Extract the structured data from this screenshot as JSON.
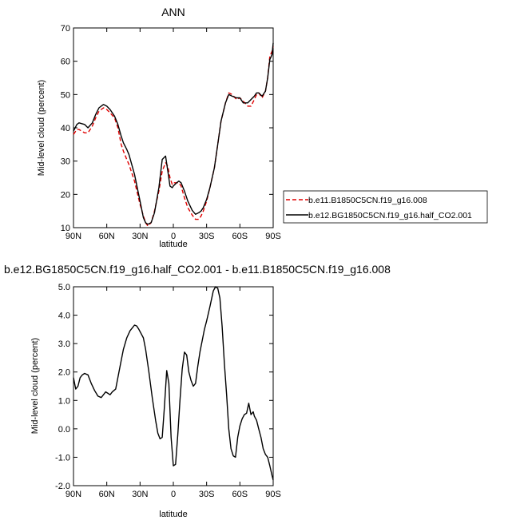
{
  "chart_data": [
    {
      "type": "line",
      "title": "ANN",
      "xlabel": "latitude",
      "ylabel": "Mid-level cloud (percent)",
      "xlim": [
        90,
        -90
      ],
      "ylim": [
        10,
        70
      ],
      "xticks": [
        90,
        60,
        30,
        0,
        -30,
        -60,
        -90
      ],
      "xtick_labels": [
        "90N",
        "60N",
        "30N",
        "0",
        "30S",
        "60S",
        "90S"
      ],
      "yticks": [
        10,
        20,
        30,
        40,
        50,
        60,
        70
      ],
      "ytick_labels": [
        "10",
        "20",
        "30",
        "40",
        "50",
        "60",
        "70"
      ],
      "legend_position": "right",
      "series": [
        {
          "name": "b.e11.B1850C5CN.f19_g16.008",
          "color": "#e00000",
          "dash": "dashed",
          "x": [
            90,
            87,
            85,
            80,
            77,
            73,
            70,
            67,
            63,
            60,
            57,
            53,
            50,
            47,
            45,
            42,
            40,
            35,
            30,
            27,
            25,
            23,
            20,
            17,
            13,
            10,
            7,
            5,
            3,
            1,
            0,
            -3,
            -5,
            -7,
            -10,
            -13,
            -17,
            -20,
            -23,
            -25,
            -27,
            -30,
            -33,
            -37,
            -40,
            -43,
            -47,
            -50,
            -53,
            -57,
            -60,
            -63,
            -67,
            -70,
            -73,
            -75,
            -77,
            -80,
            -83,
            -85,
            -87,
            -89,
            -90
          ],
          "y": [
            38,
            39.5,
            39.5,
            38.5,
            38.5,
            40.5,
            43,
            45,
            46,
            45.5,
            44.5,
            43,
            40,
            35,
            33,
            30.5,
            29,
            24,
            17,
            13.5,
            11.5,
            10.5,
            11.5,
            15,
            21,
            27,
            29.5,
            28.5,
            25,
            23,
            23.5,
            23.5,
            23.5,
            22.5,
            19,
            16,
            13.8,
            12.5,
            12.5,
            13.5,
            15,
            18,
            22,
            28,
            35,
            42,
            47.5,
            50.5,
            50,
            48.5,
            49,
            48,
            46.5,
            46.5,
            48.5,
            50,
            50.5,
            49,
            51,
            55,
            61.5,
            63,
            64.5
          ]
        },
        {
          "name": "b.e12.BG1850C5CN.f19_g16.half_CO2.001",
          "color": "#000000",
          "dash": "solid",
          "x": [
            90,
            87,
            85,
            80,
            77,
            73,
            70,
            67,
            63,
            60,
            57,
            53,
            50,
            47,
            45,
            42,
            40,
            35,
            30,
            27,
            25,
            23,
            20,
            17,
            13,
            10,
            7,
            5,
            3,
            1,
            0,
            -3,
            -5,
            -7,
            -10,
            -13,
            -17,
            -20,
            -23,
            -25,
            -27,
            -30,
            -33,
            -37,
            -40,
            -43,
            -47,
            -50,
            -53,
            -57,
            -60,
            -63,
            -67,
            -70,
            -73,
            -75,
            -77,
            -80,
            -83,
            -85,
            -87,
            -89,
            -90
          ],
          "y": [
            39,
            41,
            41.5,
            41,
            40,
            41.5,
            44,
            46,
            47,
            46.5,
            45.5,
            43.5,
            41,
            37.5,
            35.5,
            33.5,
            32,
            26,
            18,
            13,
            11.5,
            11,
            11.5,
            14.5,
            22,
            30.5,
            31.5,
            27,
            22.5,
            22,
            22.5,
            23.5,
            24,
            23.5,
            21,
            18,
            15.2,
            14,
            14.5,
            15,
            16,
            18.5,
            22,
            28,
            35,
            42,
            47.5,
            50,
            49.5,
            49,
            49,
            47.5,
            47.5,
            48.5,
            49.5,
            50.5,
            50.5,
            49.5,
            51,
            55,
            60.5,
            62,
            65.5
          ]
        }
      ]
    },
    {
      "type": "line",
      "title": "b.e12.BG1850C5CN.f19_g16.half_CO2.001 - b.e11.B1850C5CN.f19_g16.008",
      "xlabel": "latitude",
      "ylabel": "Mid-level cloud (percent)",
      "xlim": [
        90,
        -90
      ],
      "ylim": [
        -2.0,
        5.0
      ],
      "xticks": [
        90,
        60,
        30,
        0,
        -30,
        -60,
        -90
      ],
      "xtick_labels": [
        "90N",
        "60N",
        "30N",
        "0",
        "30S",
        "60S",
        "90S"
      ],
      "yticks": [
        -2.0,
        -1.0,
        0.0,
        1.0,
        2.0,
        3.0,
        4.0,
        5.0
      ],
      "ytick_labels": [
        "-2.0",
        "-1.0",
        "0.0",
        "1.0",
        "2.0",
        "3.0",
        "4.0",
        "5.0"
      ],
      "series": [
        {
          "color": "#000000",
          "dash": "solid",
          "x": [
            90,
            88,
            86,
            84,
            82,
            80,
            77,
            74,
            71,
            68,
            65,
            63,
            61,
            59,
            57,
            55,
            52,
            48,
            45,
            42,
            39,
            37,
            35,
            33,
            31,
            29,
            27,
            25,
            22,
            19,
            16,
            14,
            12,
            10,
            8,
            6,
            4,
            2,
            0,
            -2,
            -4,
            -6,
            -8,
            -10,
            -12,
            -14,
            -16,
            -18,
            -20,
            -22,
            -24,
            -26,
            -28,
            -30,
            -33,
            -36,
            -38,
            -40,
            -42,
            -44,
            -46,
            -48,
            -50,
            -52,
            -54,
            -56,
            -58,
            -60,
            -62,
            -64,
            -66,
            -68,
            -70,
            -72,
            -73,
            -75,
            -77,
            -79,
            -81,
            -83,
            -85,
            -87,
            -89,
            -90
          ],
          "y": [
            1.8,
            1.4,
            1.5,
            1.8,
            1.9,
            1.95,
            1.9,
            1.6,
            1.35,
            1.15,
            1.1,
            1.2,
            1.3,
            1.25,
            1.2,
            1.3,
            1.4,
            2.2,
            2.8,
            3.2,
            3.45,
            3.55,
            3.65,
            3.62,
            3.5,
            3.35,
            3.2,
            2.8,
            2.0,
            1.1,
            0.3,
            -0.15,
            -0.35,
            -0.3,
            0.8,
            2.05,
            1.6,
            -0.3,
            -1.3,
            -1.25,
            -0.2,
            1.0,
            2.1,
            2.7,
            2.6,
            2.0,
            1.7,
            1.5,
            1.6,
            2.2,
            2.7,
            3.1,
            3.5,
            3.8,
            4.3,
            4.85,
            5.0,
            4.95,
            4.6,
            3.6,
            2.3,
            1.2,
            0.0,
            -0.7,
            -0.95,
            -1.0,
            -0.3,
            0.1,
            0.35,
            0.5,
            0.55,
            0.9,
            0.5,
            0.6,
            0.45,
            0.3,
            0.0,
            -0.3,
            -0.7,
            -0.9,
            -1.0,
            -1.3,
            -1.65,
            -1.8
          ]
        }
      ]
    }
  ]
}
